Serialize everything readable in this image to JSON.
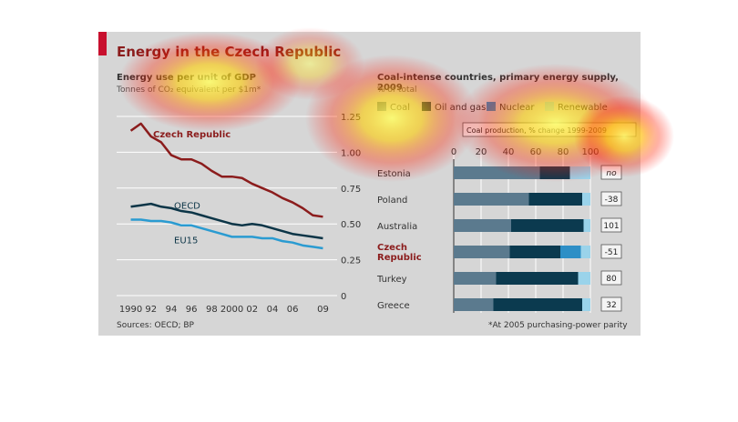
{
  "title": "Energy in the Czech Republic",
  "sources": "Sources: OECD; BP",
  "note": "*At 2005 purchasing-power parity",
  "colors": {
    "accent": "#c8102e",
    "czech": "#8b1c1c",
    "oecd": "#0c3547",
    "eu15": "#2a9bd1",
    "coal": "#5b7a8e",
    "oil_gas": "#0b3a4f",
    "nuclear": "#2e8fc6",
    "renewable": "#9ad3ea"
  },
  "chart_data": [
    {
      "type": "line",
      "title": "Energy use per unit of GDP",
      "subtitle": "Tonnes of CO₂ equivalent per $1m*",
      "x_tick_labels": [
        "1990",
        "92",
        "94",
        "96",
        "98",
        "2000",
        "02",
        "04",
        "06",
        "09"
      ],
      "x_ticks": [
        1990,
        1992,
        1994,
        1996,
        1998,
        2000,
        2002,
        2004,
        2006,
        2009
      ],
      "xlim": [
        1989.5,
        2009.5
      ],
      "ylim": [
        0,
        1.25
      ],
      "y_ticks": [
        0,
        0.25,
        0.5,
        0.75,
        1.0,
        1.25
      ],
      "y_tick_labels": [
        "0",
        "0.25",
        "0.50",
        "0.75",
        "1.00",
        "1.25"
      ],
      "x": [
        1990,
        1991,
        1992,
        1993,
        1994,
        1995,
        1996,
        1997,
        1998,
        1999,
        2000,
        2001,
        2002,
        2003,
        2004,
        2005,
        2006,
        2007,
        2008,
        2009
      ],
      "series": [
        {
          "name": "Czech Republic",
          "color_key": "czech",
          "values": [
            1.15,
            1.2,
            1.11,
            1.07,
            0.98,
            0.95,
            0.95,
            0.92,
            0.87,
            0.83,
            0.83,
            0.82,
            0.78,
            0.75,
            0.72,
            0.68,
            0.65,
            0.61,
            0.56,
            0.55
          ]
        },
        {
          "name": "OECD",
          "color_key": "oecd",
          "values": [
            0.62,
            0.63,
            0.64,
            0.62,
            0.61,
            0.59,
            0.58,
            0.56,
            0.54,
            0.52,
            0.5,
            0.49,
            0.5,
            0.49,
            0.47,
            0.45,
            0.43,
            0.42,
            0.41,
            0.4
          ]
        },
        {
          "name": "EU15",
          "color_key": "eu15",
          "values": [
            0.53,
            0.53,
            0.52,
            0.52,
            0.51,
            0.49,
            0.49,
            0.47,
            0.45,
            0.43,
            0.41,
            0.41,
            0.41,
            0.4,
            0.4,
            0.38,
            0.37,
            0.35,
            0.34,
            0.33
          ]
        }
      ]
    },
    {
      "type": "bar",
      "stacked": true,
      "orientation": "horizontal",
      "title": "Coal-intense countries, primary energy supply, 2009",
      "subtitle": "% of total",
      "legend": [
        "Coal",
        "Oil and gas",
        "Nuclear",
        "Renewable"
      ],
      "legend_color_keys": [
        "coal",
        "oil_gas",
        "nuclear",
        "renewable"
      ],
      "side_header": "Coal production, % change 1999-2009",
      "xlim": [
        0,
        100
      ],
      "x_ticks": [
        0,
        20,
        40,
        60,
        80,
        100
      ],
      "categories": [
        "Estonia",
        "Poland",
        "Australia",
        "Czech Republic",
        "Turkey",
        "Greece"
      ],
      "category_labels": [
        [
          "Estonia"
        ],
        [
          "Poland"
        ],
        [
          "Australia"
        ],
        [
          "Czech",
          "Republic"
        ],
        [
          "Turkey"
        ],
        [
          "Greece"
        ]
      ],
      "bold_category": "Czech Republic",
      "series": [
        {
          "name": "Coal",
          "values": [
            63,
            55,
            42,
            41,
            31,
            29
          ]
        },
        {
          "name": "Oil and gas",
          "values": [
            22,
            39,
            53,
            37,
            60,
            65
          ]
        },
        {
          "name": "Nuclear",
          "values": [
            0,
            0,
            0,
            15,
            0,
            0
          ]
        },
        {
          "name": "Renewable",
          "values": [
            15,
            6,
            5,
            7,
            9,
            6
          ]
        }
      ],
      "side_values": [
        "no",
        "-38",
        "101",
        "-51",
        "80",
        "32"
      ]
    }
  ]
}
